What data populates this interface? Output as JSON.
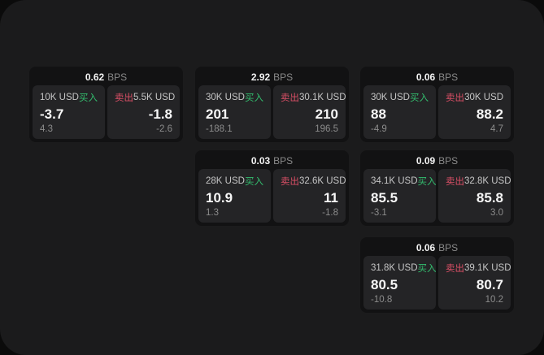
{
  "labels": {
    "bps_unit": "BPS",
    "buy": "买入",
    "sell": "卖出"
  },
  "colors": {
    "background": "#0b0b0b",
    "panel": "#1b1b1c",
    "card": "#121213",
    "tile": "#242426",
    "buy_green": "#33bd6e",
    "sell_red": "#da4f66",
    "value_text": "#f7f7f7",
    "label_text": "#c6c6c6",
    "muted_text": "#8c8c8c"
  },
  "cards": [
    {
      "bps": "0.62",
      "buy": {
        "amount": "10K USD",
        "value": "-3.7",
        "change": "4.3"
      },
      "sell": {
        "amount": "5.5K USD",
        "value": "-1.8",
        "change": "-2.6"
      }
    },
    {
      "bps": "2.92",
      "buy": {
        "amount": "30K USD",
        "value": "201",
        "change": "-188.1"
      },
      "sell": {
        "amount": "30.1K USD",
        "value": "210",
        "change": "196.5"
      }
    },
    {
      "bps": "0.06",
      "buy": {
        "amount": "30K USD",
        "value": "88",
        "change": "-4.9"
      },
      "sell": {
        "amount": "30K USD",
        "value": "88.2",
        "change": "4.7"
      }
    },
    {
      "bps": "0.03",
      "buy": {
        "amount": "28K USD",
        "value": "10.9",
        "change": "1.3"
      },
      "sell": {
        "amount": "32.6K USD",
        "value": "11",
        "change": "-1.8"
      }
    },
    {
      "bps": "0.09",
      "buy": {
        "amount": "34.1K USD",
        "value": "85.5",
        "change": "-3.1"
      },
      "sell": {
        "amount": "32.8K USD",
        "value": "85.8",
        "change": "3.0"
      }
    },
    {
      "bps": "0.06",
      "buy": {
        "amount": "31.8K USD",
        "value": "80.5",
        "change": "-10.8"
      },
      "sell": {
        "amount": "39.1K USD",
        "value": "80.7",
        "change": "10.2"
      }
    }
  ]
}
